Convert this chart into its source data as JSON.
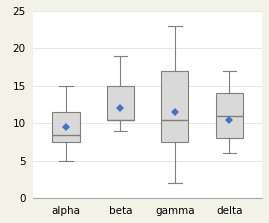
{
  "categories": [
    "alpha",
    "beta",
    "gamma",
    "delta"
  ],
  "boxes": [
    {
      "q1": 7.5,
      "median": 8.5,
      "q3": 11.5,
      "whislo": 5.0,
      "whishi": 15.0,
      "mean": 9.5
    },
    {
      "q1": 10.5,
      "median": 10.5,
      "q3": 15.0,
      "whislo": 9.0,
      "whishi": 19.0,
      "mean": 12.0
    },
    {
      "q1": 7.5,
      "median": 10.5,
      "q3": 17.0,
      "whislo": 2.0,
      "whishi": 23.0,
      "mean": 11.5
    },
    {
      "q1": 8.0,
      "median": 11.0,
      "q3": 14.0,
      "whislo": 6.0,
      "whishi": 17.0,
      "mean": 10.5
    }
  ],
  "ylim": [
    0,
    25
  ],
  "yticks": [
    0,
    5,
    10,
    15,
    20,
    25
  ],
  "box_color": "#d9d9d9",
  "box_edge_color": "#7f7f7f",
  "whisker_color": "#7f7f7f",
  "median_color": "#7f7f7f",
  "mean_marker_color": "#4472c4",
  "background_color": "#f2f2e6",
  "plot_bg_color": "#ffffff"
}
